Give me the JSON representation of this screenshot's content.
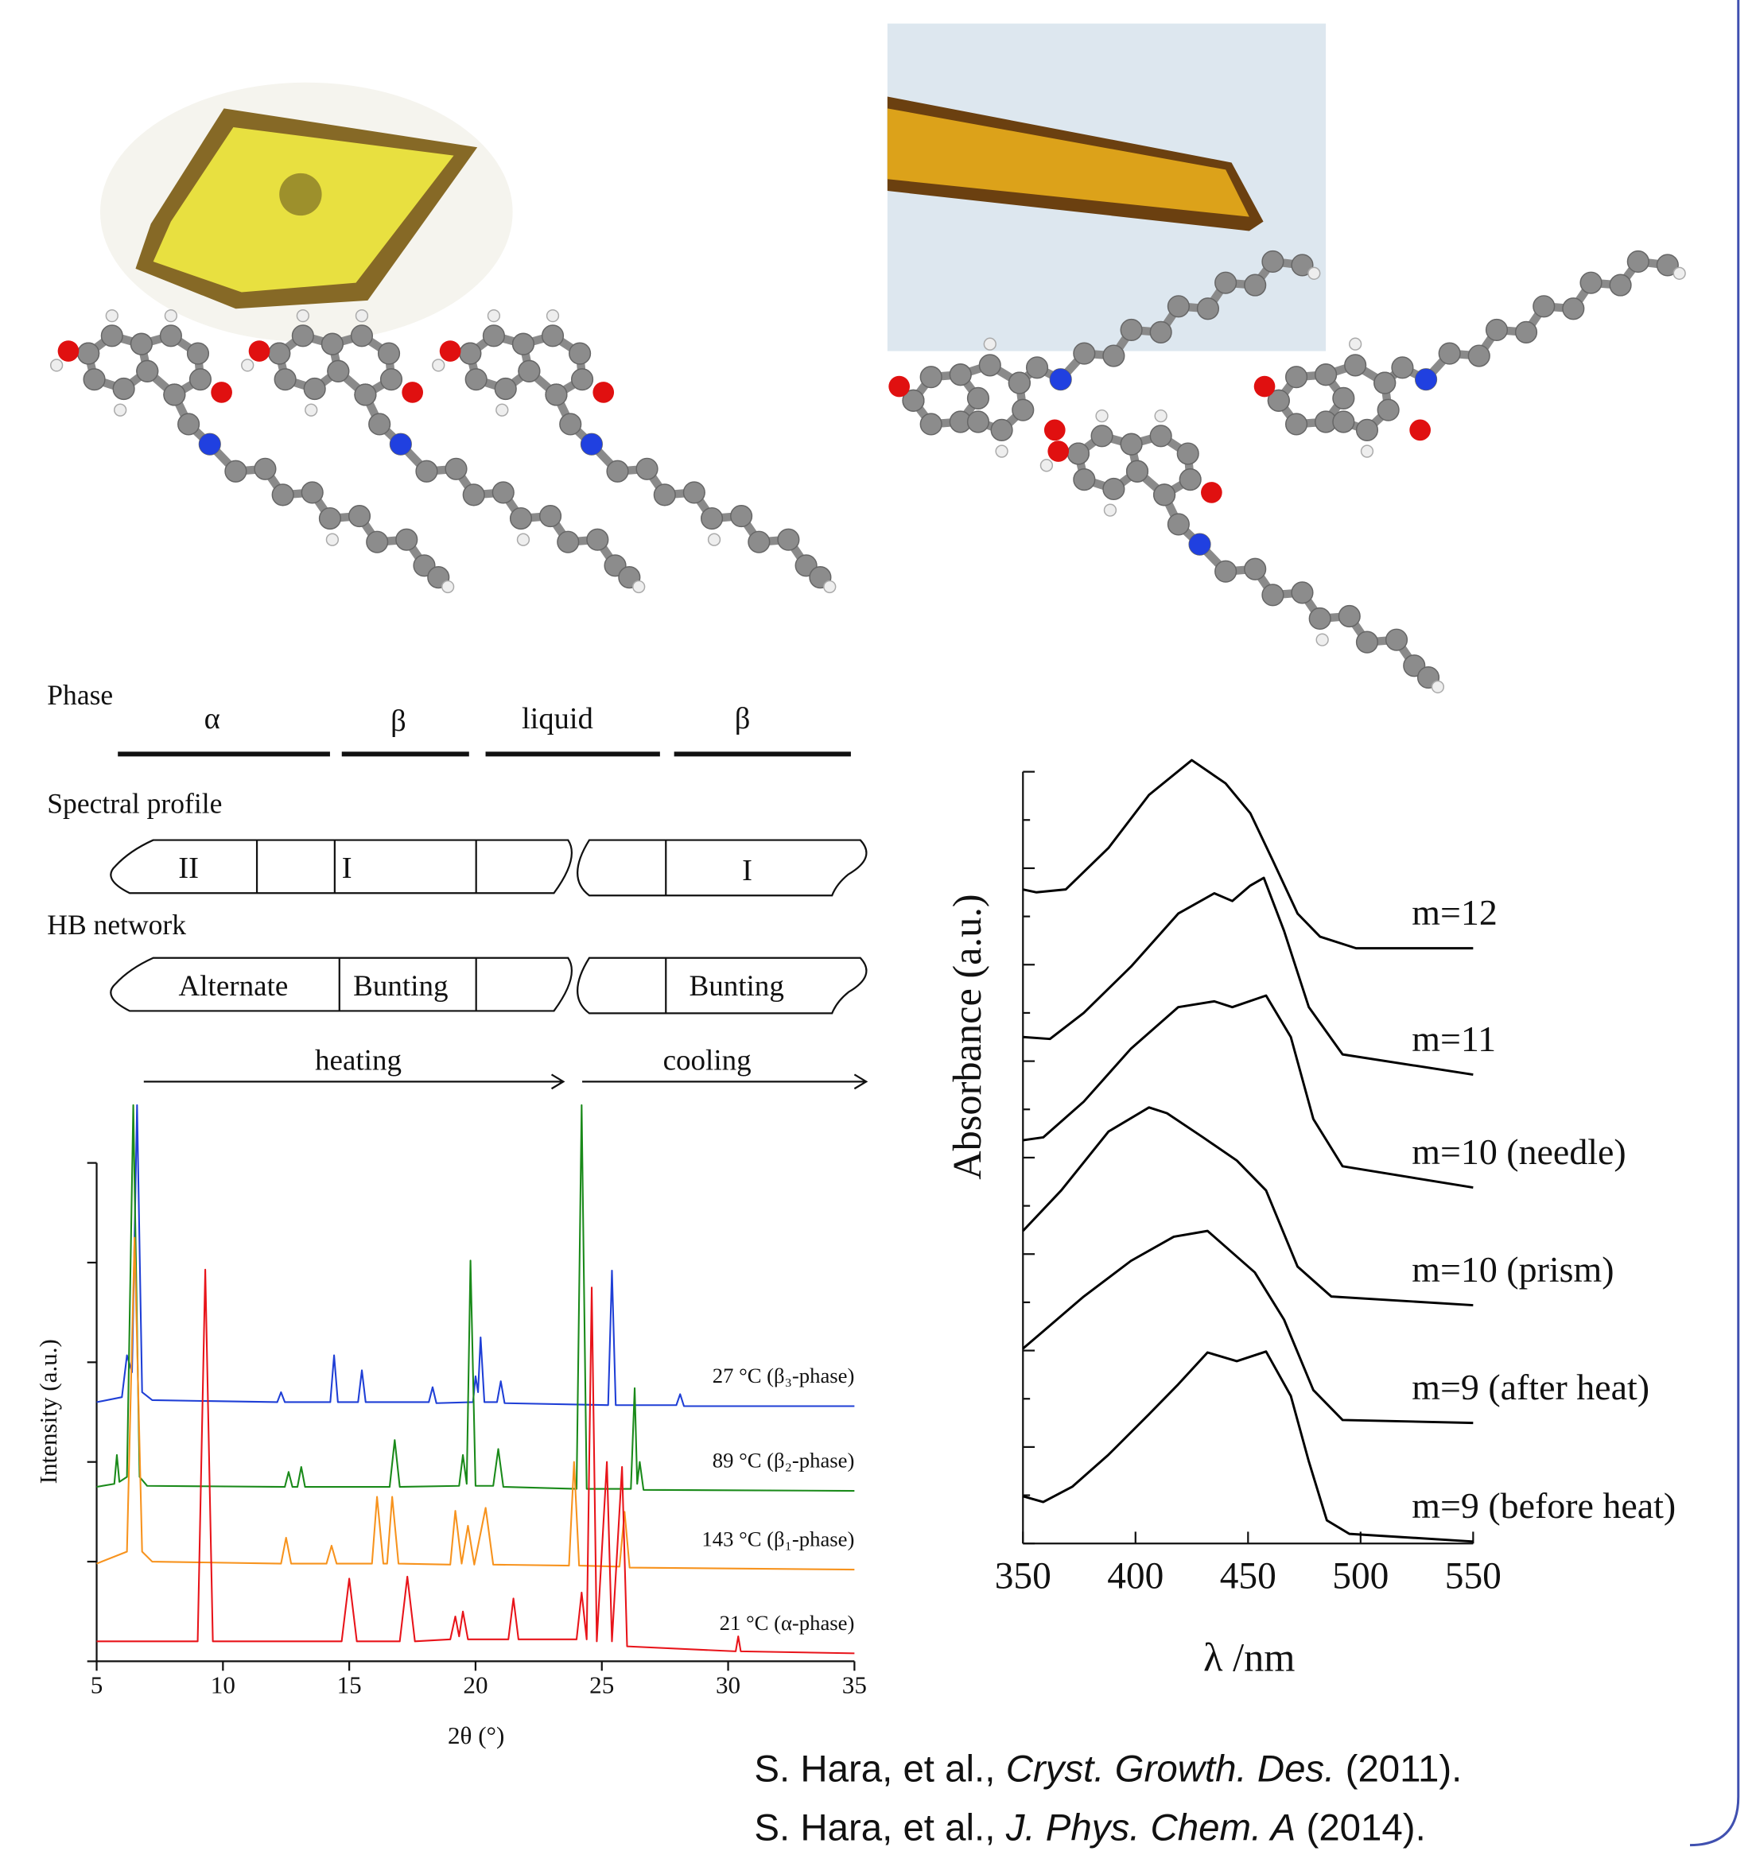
{
  "chart_data": [
    {
      "type": "line",
      "xlabel": "2θ (°)",
      "ylabel": "Intensity (a.u.)",
      "xlim": [
        5,
        35
      ],
      "ylim": [
        0,
        5
      ],
      "xticks": [
        5,
        10,
        15,
        20,
        25,
        30,
        35
      ],
      "yticks": [
        0,
        1,
        2,
        3,
        4,
        5
      ],
      "series": [
        {
          "name": "27 °C (β₃-phase)",
          "color": "#1f3fd6",
          "x": [
            5,
            6.0,
            6.2,
            6.4,
            6.6,
            6.8,
            7.2,
            12.15,
            12.3,
            12.45,
            14.25,
            14.4,
            14.55,
            15.35,
            15.5,
            15.65,
            18.15,
            18.3,
            18.45,
            19.9,
            20.0,
            20.1,
            20.2,
            20.35,
            20.85,
            21.0,
            21.15,
            25.25,
            25.4,
            25.55,
            27.95,
            28.1,
            28.25,
            35
          ],
          "values": [
            2.6,
            2.65,
            3.07,
            2.9,
            5.58,
            2.7,
            2.62,
            2.6,
            2.7,
            2.6,
            2.6,
            3.07,
            2.6,
            2.6,
            2.92,
            2.6,
            2.6,
            2.75,
            2.59,
            2.6,
            2.86,
            2.7,
            3.25,
            2.6,
            2.6,
            2.81,
            2.59,
            2.57,
            3.92,
            2.57,
            2.57,
            2.68,
            2.56,
            2.56
          ]
        },
        {
          "name": "89 °C (β₂-phase)",
          "color": "#1a8a1a",
          "x": [
            5,
            5.7,
            5.8,
            5.9,
            6.2,
            6.45,
            6.7,
            7.0,
            12.45,
            12.6,
            12.75,
            12.95,
            13.1,
            13.25,
            16.6,
            16.8,
            17.0,
            19.35,
            19.5,
            19.65,
            19.8,
            20.0,
            20.7,
            20.9,
            21.1,
            24.0,
            24.2,
            24.4,
            26.15,
            26.3,
            26.4,
            26.5,
            26.65,
            35
          ],
          "values": [
            1.75,
            1.78,
            2.07,
            1.8,
            1.85,
            5.58,
            1.85,
            1.76,
            1.75,
            1.9,
            1.75,
            1.75,
            1.95,
            1.75,
            1.75,
            2.22,
            1.75,
            1.76,
            2.07,
            1.78,
            4.02,
            1.76,
            1.76,
            2.13,
            1.75,
            1.73,
            5.58,
            1.73,
            1.73,
            2.74,
            1.78,
            2.0,
            1.72,
            1.71
          ]
        },
        {
          "name": "143 °C (β₁-phase)",
          "color": "#f7931e",
          "x": [
            5,
            6.2,
            6.5,
            6.8,
            7.2,
            12.3,
            12.5,
            12.7,
            14.1,
            14.3,
            14.5,
            15.9,
            16.1,
            16.35,
            16.5,
            16.7,
            16.95,
            19.0,
            19.2,
            19.45,
            19.7,
            19.95,
            20.4,
            20.7,
            23.7,
            23.9,
            24.1,
            25.7,
            25.9,
            26.1,
            35
          ],
          "values": [
            0.98,
            1.1,
            4.25,
            1.1,
            1.0,
            0.98,
            1.24,
            0.98,
            0.98,
            1.16,
            0.98,
            0.98,
            1.65,
            0.98,
            0.98,
            1.65,
            0.98,
            0.97,
            1.51,
            0.98,
            1.36,
            0.97,
            1.54,
            0.97,
            0.96,
            2.0,
            0.96,
            0.95,
            1.5,
            0.94,
            0.92
          ]
        },
        {
          "name": "21 °C (α-phase)",
          "color": "#e8141a",
          "x": [
            5,
            9.0,
            9.3,
            9.6,
            14.7,
            15.0,
            15.3,
            17.0,
            17.3,
            17.6,
            19.0,
            19.2,
            19.35,
            19.5,
            19.7,
            21.3,
            21.5,
            21.7,
            24.0,
            24.2,
            24.4,
            24.6,
            24.8,
            25.2,
            25.4,
            25.8,
            26.0,
            30.3,
            30.4,
            30.5,
            35
          ],
          "values": [
            0.2,
            0.2,
            3.93,
            0.2,
            0.2,
            0.83,
            0.2,
            0.2,
            0.85,
            0.2,
            0.22,
            0.45,
            0.25,
            0.5,
            0.22,
            0.22,
            0.63,
            0.22,
            0.22,
            0.69,
            0.22,
            3.75,
            0.2,
            2.0,
            0.2,
            1.95,
            0.15,
            0.1,
            0.25,
            0.1,
            0.08
          ]
        }
      ]
    },
    {
      "type": "line",
      "xlabel": "λ /nm",
      "ylabel": "Absorbance (a.u.)",
      "xlim": [
        350,
        550
      ],
      "ylim": [
        0,
        8
      ],
      "xticks": [
        350,
        400,
        450,
        500,
        550
      ],
      "yticks": [
        0,
        0.5,
        1,
        1.5,
        2,
        2.5,
        3,
        3.5,
        4,
        4.5,
        5,
        5.5,
        6,
        6.5,
        7,
        7.5,
        8
      ],
      "series": [
        {
          "name": "m=12",
          "color": "#000000",
          "x": [
            350,
            356,
            369,
            388,
            406,
            425,
            440,
            451,
            461,
            472,
            482,
            498,
            550
          ],
          "values": [
            6.78,
            6.75,
            6.78,
            7.21,
            7.76,
            8.12,
            7.88,
            7.57,
            7.08,
            6.53,
            6.29,
            6.17,
            6.17
          ]
        },
        {
          "name": "m=11",
          "color": "#000000",
          "x": [
            350,
            362,
            377,
            398,
            419,
            435,
            443,
            451,
            457,
            466,
            477,
            492,
            550
          ],
          "values": [
            5.25,
            5.23,
            5.5,
            5.98,
            6.53,
            6.74,
            6.66,
            6.82,
            6.9,
            6.35,
            5.56,
            5.07,
            4.86
          ]
        },
        {
          "name": "m=10 (needle)",
          "color": "#000000",
          "x": [
            350,
            359,
            377,
            398,
            419,
            435,
            443,
            458,
            469,
            479,
            492,
            550
          ],
          "values": [
            4.18,
            4.21,
            4.58,
            5.13,
            5.56,
            5.62,
            5.56,
            5.68,
            5.25,
            4.4,
            3.91,
            3.69
          ]
        },
        {
          "name": "m=10 (prism)",
          "color": "#000000",
          "x": [
            350,
            367,
            388,
            406,
            414,
            430,
            445,
            458,
            472,
            487,
            550
          ],
          "values": [
            3.24,
            3.66,
            4.27,
            4.52,
            4.46,
            4.21,
            3.97,
            3.66,
            2.87,
            2.56,
            2.47
          ]
        },
        {
          "name": "m=9 (after heat)",
          "color": "#000000",
          "x": [
            350,
            359,
            377,
            398,
            417,
            432,
            453,
            466,
            479,
            492,
            550
          ],
          "values": [
            2.02,
            2.2,
            2.56,
            2.93,
            3.18,
            3.24,
            2.81,
            2.32,
            1.59,
            1.28,
            1.25
          ]
        },
        {
          "name": "m=9 (before heat)",
          "color": "#000000",
          "x": [
            350,
            359,
            372,
            388,
            406,
            419,
            432,
            445,
            458,
            469,
            477,
            485,
            495,
            550
          ],
          "values": [
            0.49,
            0.43,
            0.59,
            0.92,
            1.34,
            1.65,
            1.98,
            1.89,
            1.99,
            1.53,
            0.85,
            0.24,
            0.1,
            0.02
          ]
        }
      ]
    }
  ],
  "phase_diagram": {
    "phase_label": "Phase",
    "phases": [
      "α",
      "β",
      "liquid",
      "β"
    ],
    "spectral_label": "Spectral profile",
    "spectral": [
      "II",
      "I",
      "I"
    ],
    "hb_label": "HB network",
    "hb": [
      "Alternate",
      "Bunting",
      "Bunting"
    ],
    "heating": "heating",
    "cooling": "cooling"
  },
  "citations": [
    {
      "authors": "S. Hara, et al.,",
      "journal": "Cryst. Growth. Des.",
      "year": "(2011)."
    },
    {
      "authors": "S. Hara, et al.,",
      "journal": "J. Phys. Chem. A",
      "year": "(2014)."
    }
  ]
}
